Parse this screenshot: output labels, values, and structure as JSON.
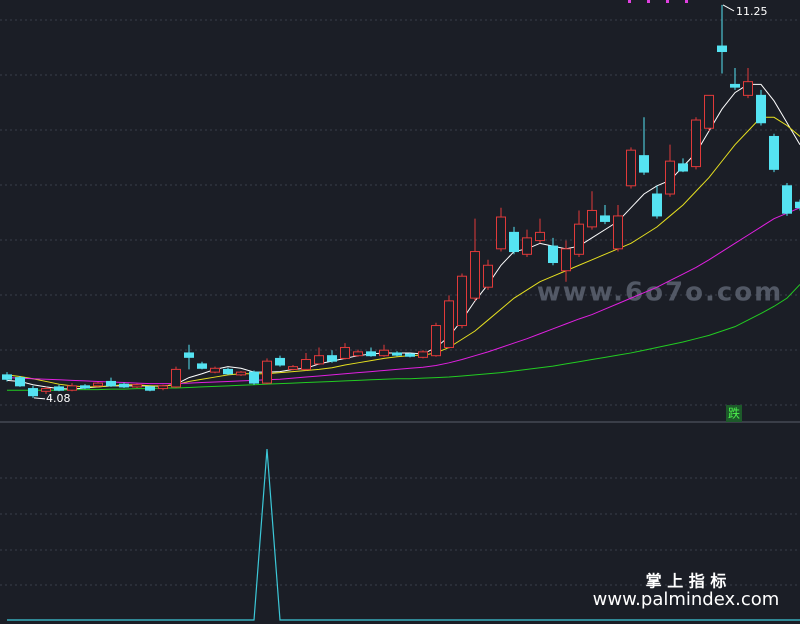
{
  "chart_data": [
    {
      "type": "candlestick",
      "up_color": "#e03a3a",
      "down_color": "#55e3f2",
      "ylim": [
        3.64,
        11.34
      ],
      "open": [
        4.5,
        4.45,
        4.25,
        4.2,
        4.28,
        4.22,
        4.3,
        4.3,
        4.38,
        4.33,
        4.28,
        4.28,
        4.25,
        4.28,
        4.9,
        4.7,
        4.55,
        4.6,
        4.5,
        4.55,
        4.35,
        4.8,
        4.6,
        4.6,
        4.7,
        4.85,
        4.8,
        4.85,
        4.92,
        4.85,
        4.9,
        4.88,
        4.82,
        4.85,
        5.0,
        5.4,
        5.9,
        6.1,
        6.8,
        7.1,
        6.7,
        6.95,
        6.85,
        6.4,
        6.7,
        7.2,
        7.4,
        6.8,
        7.95,
        8.5,
        7.8,
        7.8,
        8.35,
        8.3,
        9.0,
        10.5,
        9.8,
        9.6,
        9.6,
        8.85,
        7.95,
        7.65
      ],
      "high": [
        4.55,
        4.48,
        4.3,
        4.28,
        4.32,
        4.35,
        4.33,
        4.37,
        4.45,
        4.36,
        4.34,
        4.3,
        4.32,
        4.65,
        5.05,
        4.74,
        4.65,
        4.63,
        4.57,
        4.58,
        4.8,
        4.85,
        4.68,
        4.9,
        5.0,
        4.95,
        5.08,
        4.96,
        5.0,
        5.05,
        4.93,
        4.9,
        4.95,
        5.45,
        5.95,
        6.35,
        7.35,
        6.6,
        7.55,
        7.2,
        7.15,
        7.35,
        7.0,
        6.95,
        7.5,
        7.85,
        7.6,
        7.6,
        8.65,
        9.2,
        7.95,
        8.7,
        8.45,
        9.2,
        9.6,
        11.25,
        10.1,
        10.1,
        9.7,
        8.9,
        8.0,
        7.7
      ],
      "low": [
        4.38,
        4.28,
        4.08,
        4.15,
        4.2,
        4.2,
        4.24,
        4.28,
        4.28,
        4.26,
        4.26,
        4.2,
        4.22,
        4.26,
        4.6,
        4.6,
        4.53,
        4.5,
        4.48,
        4.32,
        4.33,
        4.65,
        4.58,
        4.58,
        4.68,
        4.72,
        4.78,
        4.83,
        4.83,
        4.83,
        4.84,
        4.82,
        4.8,
        4.83,
        4.98,
        5.35,
        5.85,
        6.05,
        6.75,
        6.7,
        6.65,
        6.9,
        6.5,
        6.2,
        6.65,
        7.15,
        7.25,
        6.75,
        7.9,
        8.15,
        7.35,
        7.75,
        8.2,
        8.25,
        8.95,
        10.0,
        9.7,
        9.55,
        9.05,
        8.2,
        7.4,
        7.5
      ],
      "close": [
        4.42,
        4.3,
        4.12,
        4.25,
        4.22,
        4.3,
        4.26,
        4.35,
        4.3,
        4.28,
        4.32,
        4.22,
        4.3,
        4.6,
        4.82,
        4.62,
        4.62,
        4.52,
        4.55,
        4.35,
        4.75,
        4.68,
        4.65,
        4.78,
        4.85,
        4.75,
        5.0,
        4.92,
        4.85,
        4.95,
        4.86,
        4.84,
        4.92,
        5.4,
        5.85,
        6.3,
        6.75,
        6.5,
        7.38,
        6.75,
        7.0,
        7.1,
        6.55,
        6.8,
        7.25,
        7.5,
        7.3,
        7.4,
        8.6,
        8.2,
        7.4,
        8.4,
        8.22,
        9.15,
        9.6,
        10.4,
        9.75,
        9.85,
        9.1,
        8.25,
        7.45,
        7.55
      ],
      "moving_averages": [
        {
          "color": "#ffffff",
          "values": [
            4.4,
            4.38,
            4.32,
            4.28,
            4.25,
            4.24,
            4.26,
            4.28,
            4.3,
            4.3,
            4.3,
            4.3,
            4.29,
            4.33,
            4.45,
            4.52,
            4.6,
            4.65,
            4.62,
            4.55,
            4.55,
            4.56,
            4.6,
            4.62,
            4.7,
            4.75,
            4.8,
            4.85,
            4.88,
            4.9,
            4.9,
            4.9,
            4.88,
            5.0,
            5.2,
            5.5,
            5.85,
            6.15,
            6.5,
            6.75,
            6.8,
            6.9,
            6.85,
            6.8,
            6.85,
            7.0,
            7.15,
            7.3,
            7.55,
            7.8,
            7.95,
            8.05,
            8.3,
            8.55,
            8.95,
            9.35,
            9.65,
            9.8,
            9.8,
            9.5,
            9.1,
            8.7
          ]
        },
        {
          "color": "#e6e020",
          "values": [
            4.5,
            4.47,
            4.43,
            4.38,
            4.33,
            4.3,
            4.28,
            4.28,
            4.3,
            4.32,
            4.32,
            4.3,
            4.3,
            4.32,
            4.38,
            4.42,
            4.46,
            4.5,
            4.52,
            4.52,
            4.52,
            4.54,
            4.56,
            4.58,
            4.6,
            4.63,
            4.68,
            4.72,
            4.76,
            4.8,
            4.83,
            4.85,
            4.86,
            4.9,
            5.0,
            5.15,
            5.3,
            5.5,
            5.7,
            5.9,
            6.05,
            6.2,
            6.3,
            6.4,
            6.5,
            6.6,
            6.7,
            6.8,
            6.9,
            7.05,
            7.2,
            7.4,
            7.6,
            7.85,
            8.1,
            8.4,
            8.7,
            8.95,
            9.2,
            9.2,
            9.05,
            8.85
          ]
        },
        {
          "color": "#e020e0",
          "values": [
            4.45,
            4.44,
            4.43,
            4.42,
            4.41,
            4.4,
            4.39,
            4.38,
            4.37,
            4.36,
            4.35,
            4.34,
            4.34,
            4.34,
            4.35,
            4.36,
            4.37,
            4.38,
            4.39,
            4.4,
            4.41,
            4.42,
            4.44,
            4.46,
            4.48,
            4.5,
            4.52,
            4.54,
            4.56,
            4.58,
            4.6,
            4.62,
            4.64,
            4.67,
            4.72,
            4.78,
            4.85,
            4.92,
            5.0,
            5.08,
            5.16,
            5.25,
            5.34,
            5.43,
            5.52,
            5.6,
            5.7,
            5.8,
            5.9,
            6.0,
            6.1,
            6.22,
            6.34,
            6.46,
            6.6,
            6.75,
            6.9,
            7.05,
            7.2,
            7.35,
            7.45,
            7.55
          ]
        },
        {
          "color": "#22cc22",
          "values": [
            4.22,
            4.22,
            4.22,
            4.22,
            4.22,
            4.23,
            4.23,
            4.23,
            4.24,
            4.24,
            4.25,
            4.25,
            4.26,
            4.26,
            4.27,
            4.28,
            4.29,
            4.3,
            4.31,
            4.32,
            4.33,
            4.34,
            4.35,
            4.36,
            4.37,
            4.38,
            4.39,
            4.4,
            4.41,
            4.42,
            4.43,
            4.43,
            4.44,
            4.45,
            4.46,
            4.48,
            4.5,
            4.52,
            4.54,
            4.57,
            4.6,
            4.63,
            4.66,
            4.7,
            4.74,
            4.78,
            4.82,
            4.86,
            4.9,
            4.95,
            5.0,
            5.05,
            5.1,
            5.16,
            5.22,
            5.3,
            5.38,
            5.5,
            5.62,
            5.75,
            5.9,
            6.15
          ]
        }
      ],
      "high_label": "11.25",
      "low_label": "4.08",
      "signal_label": "跌",
      "watermark": "www.6o7o.com"
    },
    {
      "type": "line",
      "color": "#3cc8d8",
      "ylim": [
        0,
        1.1
      ],
      "values": [
        0,
        0,
        0,
        0,
        0,
        0,
        0,
        0,
        0,
        0,
        0,
        0,
        0,
        0,
        0,
        0,
        0,
        0,
        0,
        0,
        1,
        0,
        0,
        0,
        0,
        0,
        0,
        0,
        0,
        0,
        0,
        0,
        0,
        0,
        0,
        0,
        0,
        0,
        0,
        0,
        0,
        0,
        0,
        0,
        0,
        0,
        0,
        0,
        0,
        0,
        0,
        0,
        0,
        0,
        0,
        0,
        0,
        0,
        0,
        0,
        0,
        0
      ]
    }
  ],
  "brand": "掌 上 指 标",
  "brand_url": "www.palmindex.com"
}
